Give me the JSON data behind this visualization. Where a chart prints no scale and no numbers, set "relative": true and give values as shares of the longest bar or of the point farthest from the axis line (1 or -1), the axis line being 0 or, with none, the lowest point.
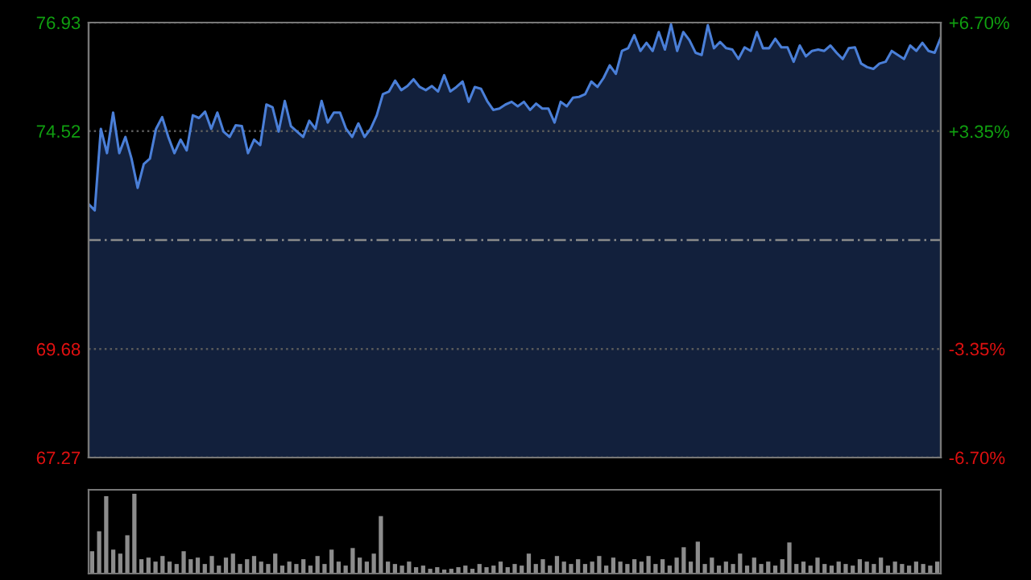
{
  "chart_data": [
    {
      "type": "area",
      "categories": [
        null,
        null,
        null,
        null,
        null,
        null,
        null,
        null,
        null,
        null,
        null,
        null,
        null,
        null,
        null,
        null,
        null,
        null,
        null,
        null,
        null,
        null,
        null,
        null,
        null,
        null,
        null,
        null,
        null,
        null,
        null,
        null,
        null,
        null,
        null,
        null,
        null,
        null,
        null,
        null,
        null,
        null,
        null,
        null,
        null,
        null,
        null,
        null,
        null,
        null,
        null,
        null,
        null,
        null,
        null,
        null,
        null,
        null,
        null,
        null,
        null,
        null,
        null,
        null,
        null,
        null,
        null,
        null,
        null,
        null,
        null,
        null,
        null,
        null,
        null,
        null,
        null,
        null,
        null,
        null,
        null,
        null,
        null,
        null,
        null,
        null,
        null,
        null,
        null,
        null,
        null,
        null,
        null,
        null,
        null,
        null,
        null,
        null,
        null,
        null,
        null,
        null,
        null,
        null,
        null,
        null,
        null,
        null,
        null,
        null,
        null,
        null,
        null,
        null,
        null,
        null,
        null,
        null,
        null,
        null,
        null,
        null,
        null,
        null,
        null,
        null,
        null,
        null,
        null,
        null,
        null,
        null,
        null,
        null,
        null,
        null,
        null,
        null,
        null,
        null
      ],
      "series": [
        {
          "color": "#4a7fd8",
          "values": [
            72.9,
            72.76,
            74.57,
            74.03,
            74.93,
            74.03,
            74.39,
            73.91,
            73.26,
            73.79,
            73.91,
            74.57,
            74.83,
            74.39,
            74.03,
            74.33,
            74.09,
            74.87,
            74.81,
            74.95,
            74.57,
            74.93,
            74.51,
            74.39,
            74.65,
            74.63,
            74.03,
            74.33,
            74.21,
            75.11,
            75.05,
            74.51,
            75.19,
            74.63,
            74.51,
            74.39,
            74.75,
            74.57,
            75.19,
            74.71,
            74.93,
            74.93,
            74.57,
            74.39,
            74.69,
            74.39,
            74.57,
            74.87,
            75.34,
            75.4,
            75.64,
            75.43,
            75.52,
            75.67,
            75.5,
            75.43,
            75.52,
            75.4,
            75.76,
            75.4,
            75.5,
            75.62,
            75.17,
            75.5,
            75.46,
            75.19,
            74.99,
            75.02,
            75.11,
            75.17,
            75.07,
            75.17,
            74.99,
            75.13,
            75.02,
            75.02,
            74.71,
            75.17,
            75.07,
            75.26,
            75.28,
            75.34,
            75.62,
            75.5,
            75.7,
            75.98,
            75.79,
            76.3,
            76.36,
            76.65,
            76.3,
            76.48,
            76.3,
            76.72,
            76.33,
            76.89,
            76.3,
            76.72,
            76.54,
            76.26,
            76.21,
            76.87,
            76.36,
            76.5,
            76.36,
            76.33,
            76.12,
            76.38,
            76.3,
            76.72,
            76.36,
            76.36,
            76.57,
            76.38,
            76.38,
            76.06,
            76.42,
            76.18,
            76.3,
            76.33,
            76.3,
            76.42,
            76.26,
            76.12,
            76.36,
            76.38,
            76.02,
            75.94,
            75.9,
            76.02,
            76.06,
            76.3,
            76.21,
            76.12,
            76.42,
            76.3,
            76.48,
            76.3,
            76.26,
            76.6
          ]
        }
      ],
      "ylim": [
        67.27,
        76.93
      ],
      "yticks": [
        67.27,
        69.68,
        74.52,
        76.93
      ],
      "y2lim": [
        -6.7,
        6.7
      ],
      "y2ticks": [
        {
          "value": -6.7,
          "label": "-6.70%"
        },
        {
          "value": -3.35,
          "label": "-3.35%"
        },
        {
          "value": 3.35,
          "label": "+3.35%"
        },
        {
          "value": 6.7,
          "label": "+6.70%"
        }
      ],
      "ref_lines": [
        {
          "axis": "y",
          "value": 72.1,
          "line_style": "dashed",
          "color": "#8a8a8a"
        }
      ],
      "grid": "y"
    },
    {
      "type": "bar",
      "relative": true,
      "color": "#8c8c8c",
      "categories": [
        null,
        null,
        null,
        null,
        null,
        null,
        null,
        null,
        null,
        null,
        null,
        null,
        null,
        null,
        null,
        null,
        null,
        null,
        null,
        null,
        null,
        null,
        null,
        null,
        null,
        null,
        null,
        null,
        null,
        null,
        null,
        null,
        null,
        null,
        null,
        null,
        null,
        null,
        null,
        null,
        null,
        null,
        null,
        null,
        null,
        null,
        null,
        null,
        null,
        null,
        null,
        null,
        null,
        null,
        null,
        null,
        null,
        null,
        null,
        null,
        null,
        null,
        null,
        null,
        null,
        null,
        null,
        null,
        null,
        null,
        null,
        null,
        null,
        null,
        null,
        null,
        null,
        null,
        null,
        null,
        null,
        null,
        null,
        null,
        null,
        null,
        null,
        null,
        null,
        null,
        null,
        null,
        null,
        null,
        null,
        null,
        null,
        null,
        null,
        null,
        null,
        null,
        null,
        null,
        null,
        null,
        null,
        null,
        null,
        null,
        null,
        null,
        null,
        null,
        null,
        null,
        null,
        null,
        null,
        null,
        null
      ],
      "values": [
        0.28,
        0.53,
        0.97,
        0.3,
        0.25,
        0.48,
        1,
        0.18,
        0.2,
        0.15,
        0.22,
        0.15,
        0.12,
        0.28,
        0.18,
        0.2,
        0.12,
        0.22,
        0.1,
        0.2,
        0.25,
        0.12,
        0.18,
        0.22,
        0.15,
        0.12,
        0.25,
        0.1,
        0.15,
        0.12,
        0.18,
        0.1,
        0.22,
        0.12,
        0.3,
        0.15,
        0.1,
        0.32,
        0.2,
        0.15,
        0.25,
        0.72,
        0.15,
        0.12,
        0.1,
        0.15,
        0.08,
        0.1,
        0.06,
        0.08,
        0.05,
        0.06,
        0.08,
        0.1,
        0.06,
        0.12,
        0.08,
        0.1,
        0.15,
        0.08,
        0.12,
        0.1,
        0.25,
        0.12,
        0.18,
        0.1,
        0.22,
        0.15,
        0.12,
        0.18,
        0.12,
        0.15,
        0.22,
        0.1,
        0.2,
        0.15,
        0.12,
        0.18,
        0.15,
        0.22,
        0.12,
        0.18,
        0.1,
        0.2,
        0.33,
        0.15,
        0.4,
        0.12,
        0.2,
        0.1,
        0.15,
        0.12,
        0.25,
        0.1,
        0.2,
        0.12,
        0.15,
        0.1,
        0.18,
        0.39,
        0.12,
        0.15,
        0.1,
        0.2,
        0.12,
        0.1,
        0.15,
        0.12,
        0.1,
        0.18,
        0.15,
        0.12,
        0.2,
        0.1,
        0.15,
        0.12,
        0.1,
        0.15,
        0.12,
        0.1,
        0.15
      ]
    }
  ]
}
